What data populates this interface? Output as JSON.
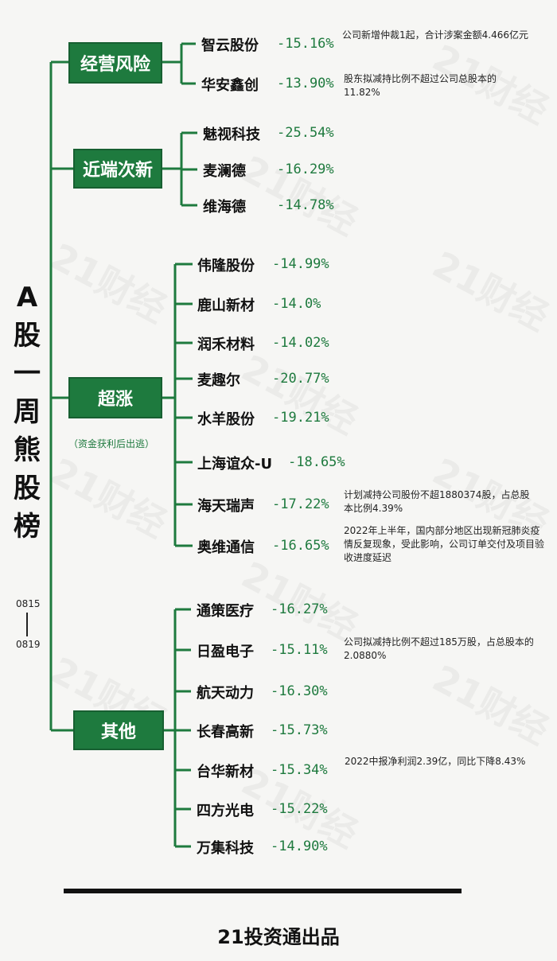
{
  "title_chars": [
    "A",
    "股",
    "一",
    "周",
    "熊",
    "股",
    "榜"
  ],
  "date_start": "0815",
  "date_end": "0819",
  "footer": "21投资通出品",
  "watermark": "21财经",
  "colors": {
    "accent": "#1e7a3e",
    "text": "#111111",
    "background": "#f6f6f4"
  },
  "categories": [
    {
      "label": "经营风险",
      "items": [
        {
          "name": "智云股份",
          "pct": "-15.16%",
          "note": "公司新增仲裁1起，合计涉案金额4.466亿元"
        },
        {
          "name": "华安鑫创",
          "pct": "-13.90%",
          "note": "股东拟减持比例不超过公司总股本的11.82%"
        }
      ]
    },
    {
      "label": "近端次新",
      "items": [
        {
          "name": "魅视科技",
          "pct": "-25.54%"
        },
        {
          "name": "麦澜德",
          "pct": "-16.29%"
        },
        {
          "name": "维海德",
          "pct": "-14.78%"
        }
      ]
    },
    {
      "label": "超涨",
      "sub": "（资金获利后出逃）",
      "items": [
        {
          "name": "伟隆股份",
          "pct": "-14.99%"
        },
        {
          "name": "鹿山新材",
          "pct": "-14.0%"
        },
        {
          "name": "润禾材料",
          "pct": "-14.02%"
        },
        {
          "name": "麦趣尔",
          "pct": "-20.77%"
        },
        {
          "name": "水羊股份",
          "pct": "-19.21%"
        },
        {
          "name": "上海谊众-U",
          "pct": "-18.65%"
        },
        {
          "name": "海天瑞声",
          "pct": "-17.22%",
          "note": "计划减持公司股份不超1880374股，占总股本比例4.39%"
        },
        {
          "name": "奥维通信",
          "pct": "-16.65%",
          "note": "2022年上半年，国内部分地区出现新冠肺炎疫情反复现象，受此影响，公司订单交付及项目验收进度延迟"
        }
      ]
    },
    {
      "label": "其他",
      "items": [
        {
          "name": "通策医疗",
          "pct": "-16.27%"
        },
        {
          "name": "日盈电子",
          "pct": "-15.11%",
          "note": "公司拟减持比例不超过185万股，占总股本的2.0880%"
        },
        {
          "name": "航天动力",
          "pct": "-16.30%"
        },
        {
          "name": "长春高新",
          "pct": "-15.73%"
        },
        {
          "name": "台华新材",
          "pct": "-15.34%",
          "note": "2022中报净利润2.39亿，同比下降8.43%"
        },
        {
          "name": "四方光电",
          "pct": "-15.22%"
        },
        {
          "name": "万集科技",
          "pct": "-14.90%"
        }
      ]
    }
  ]
}
